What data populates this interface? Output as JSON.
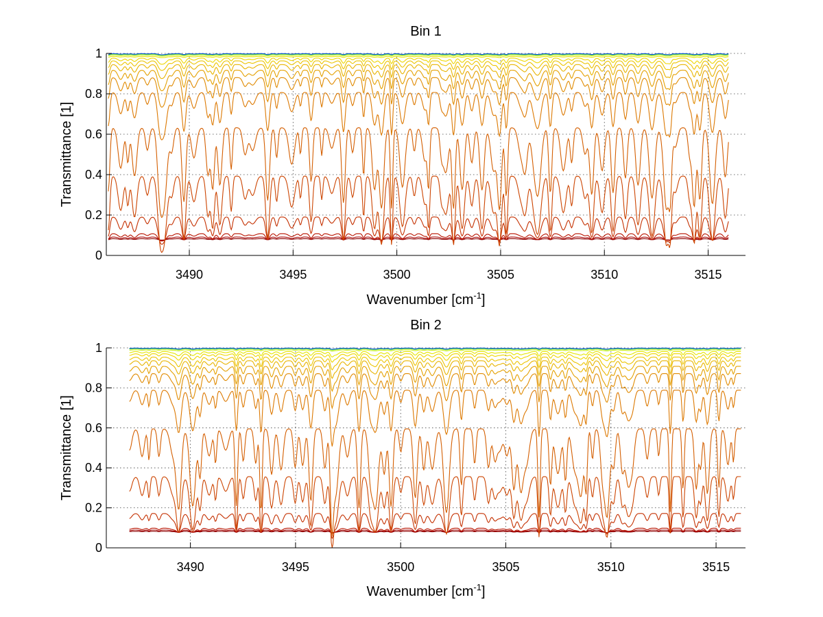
{
  "chart_data": [
    {
      "type": "line",
      "title": "Bin 1",
      "xlabel_main": "Wavenumber [cm",
      "xlabel_sup": "-1",
      "xlabel_end": "]",
      "ylabel": "Transmittance [1]",
      "xlim": [
        3486,
        3516.8
      ],
      "ylim": [
        0,
        1
      ],
      "xticks": [
        3490,
        3495,
        3500,
        3505,
        3510,
        3515
      ],
      "yticks": [
        0,
        0.2,
        0.4,
        0.6,
        0.8,
        1
      ],
      "ytick_labels": [
        "0",
        "0.2",
        "0.4",
        "0.6",
        "0.8",
        "1"
      ],
      "xtick_labels": [
        "3490",
        "3495",
        "3500",
        "3505",
        "3510",
        "3515"
      ],
      "grid": true,
      "x_start": 3486.1,
      "x_end": 3516.0,
      "series_colors": [
        "#8b0000",
        "#a50000",
        "#b81400",
        "#c43000",
        "#cc4400",
        "#d45e00",
        "#dc7800",
        "#e08a00",
        "#e4a000",
        "#e8b400",
        "#ecc400",
        "#eed600",
        "#e6e600",
        "#c8ec20",
        "#90ee50",
        "#40c8a0",
        "#0050c8"
      ],
      "series_baselines": [
        0.003,
        0.012,
        0.03,
        0.12,
        0.34,
        0.6,
        0.79,
        0.87,
        0.91,
        0.94,
        0.96,
        0.975,
        0.985,
        0.992,
        0.996,
        0.998,
        0.999
      ]
    },
    {
      "type": "line",
      "title": "Bin 2",
      "xlabel_main": "Wavenumber [cm",
      "xlabel_sup": "-1",
      "xlabel_end": "]",
      "ylabel": "Transmittance [1]",
      "xlim": [
        3486,
        3516.4
      ],
      "ylim": [
        0,
        1
      ],
      "xticks": [
        3490,
        3495,
        3500,
        3505,
        3510,
        3515
      ],
      "yticks": [
        0,
        0.2,
        0.4,
        0.6,
        0.8,
        1
      ],
      "ytick_labels": [
        "0",
        "0.2",
        "0.4",
        "0.6",
        "0.8",
        "1"
      ],
      "xtick_labels": [
        "3490",
        "3495",
        "3500",
        "3505",
        "3510",
        "3515"
      ],
      "grid": true,
      "x_start": 3487.1,
      "x_end": 3516.2,
      "series_colors": [
        "#8b0000",
        "#a50000",
        "#b81400",
        "#c43000",
        "#cc4400",
        "#d45e00",
        "#dc7800",
        "#e08a00",
        "#e4a000",
        "#e8b400",
        "#ecc400",
        "#eed600",
        "#e6e600",
        "#c8ec20",
        "#90ee50",
        "#40c8a0",
        "#0050c8"
      ],
      "series_baselines": [
        0.003,
        0.01,
        0.02,
        0.1,
        0.3,
        0.56,
        0.77,
        0.86,
        0.9,
        0.93,
        0.95,
        0.968,
        0.98,
        0.99,
        0.995,
        0.998,
        0.999
      ]
    }
  ]
}
